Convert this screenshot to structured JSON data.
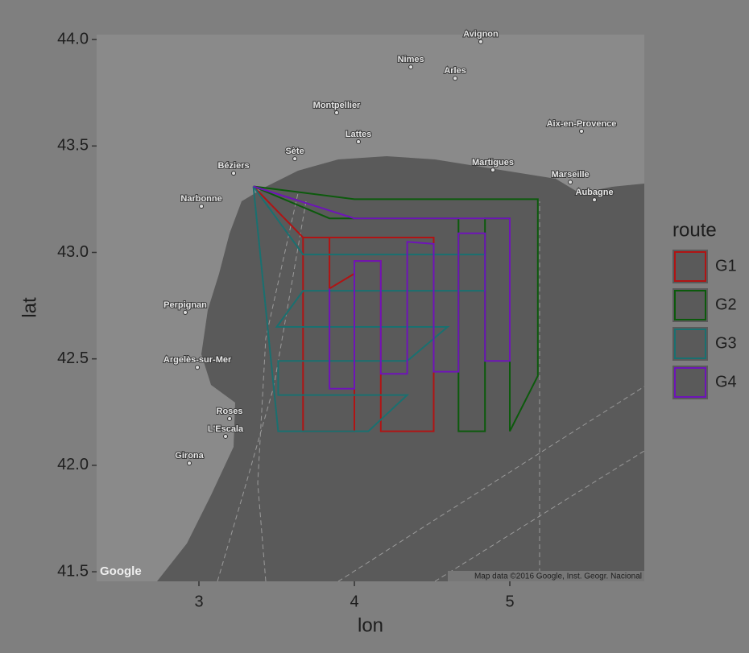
{
  "chart_data": {
    "type": "line",
    "x_label": "lon",
    "y_label": "lat",
    "xlim": [
      2.342,
      5.865
    ],
    "ylim": [
      41.455,
      44.023
    ],
    "xticks": [
      3,
      4,
      5
    ],
    "yticks": [
      {
        "value": 41.5,
        "label": "41.5"
      },
      {
        "value": 42,
        "label": "42.0"
      },
      {
        "value": 42.5,
        "label": "42.5"
      },
      {
        "value": 43,
        "label": "43.0"
      },
      {
        "value": 43.5,
        "label": "43.5"
      },
      {
        "value": 44,
        "label": "44.0"
      }
    ],
    "legend_title": "route",
    "legend_position": "right",
    "series": [
      {
        "name": "G1",
        "color": "#b01414",
        "x": [
          3.35,
          3.67,
          4.51,
          4.51,
          4.17,
          4.17,
          4.0,
          4.0,
          3.84,
          3.84,
          3.67,
          3.67,
          3.84,
          3.84,
          4.0
        ],
        "y": [
          43.31,
          43.07,
          43.07,
          42.16,
          42.16,
          42.96,
          42.96,
          42.16,
          42.16,
          42.16,
          42.16,
          43.07,
          43.07,
          42.83,
          42.9
        ]
      },
      {
        "name": "G2",
        "color": "#0c5a0c",
        "x": [
          3.35,
          4.0,
          5.18,
          5.18,
          5.0,
          5.0,
          4.84,
          4.84,
          4.67,
          4.67,
          3.84,
          3.35
        ],
        "y": [
          43.31,
          43.25,
          43.25,
          42.42,
          42.16,
          43.16,
          43.16,
          42.16,
          42.16,
          43.16,
          43.16,
          43.31
        ]
      },
      {
        "name": "G3",
        "color": "#1a7070",
        "x": [
          3.35,
          3.51,
          4.09,
          4.34,
          3.51,
          3.51,
          4.34,
          4.6,
          3.5,
          3.67,
          4.84,
          4.84,
          3.67,
          3.35
        ],
        "y": [
          43.31,
          42.16,
          42.16,
          42.33,
          42.33,
          42.49,
          42.49,
          42.65,
          42.65,
          42.82,
          42.82,
          42.99,
          42.99,
          43.31
        ]
      },
      {
        "name": "G4",
        "color": "#6e14b8",
        "x": [
          3.35,
          4.0,
          5.0,
          5.0,
          4.84,
          4.84,
          4.67,
          4.67,
          4.51,
          4.51,
          4.34,
          4.34,
          4.17,
          4.17,
          4.0,
          4.0,
          3.84,
          3.84
        ],
        "y": [
          43.31,
          43.16,
          43.16,
          42.49,
          42.49,
          43.09,
          43.09,
          42.44,
          42.44,
          43.04,
          43.05,
          42.43,
          42.43,
          42.96,
          42.96,
          42.36,
          42.36,
          42.83
        ]
      }
    ],
    "map_labels": [
      {
        "text": "Avignon",
        "lon": 4.813,
        "lat": 43.99
      },
      {
        "text": "Nimes",
        "lon": 4.363,
        "lat": 43.871
      },
      {
        "text": "Arles",
        "lon": 4.648,
        "lat": 43.818
      },
      {
        "text": "Montpellier",
        "lon": 3.886,
        "lat": 43.656
      },
      {
        "text": "Lattes",
        "lon": 4.026,
        "lat": 43.52
      },
      {
        "text": "Sète",
        "lon": 3.617,
        "lat": 43.44
      },
      {
        "text": "Béziers",
        "lon": 3.223,
        "lat": 43.372
      },
      {
        "text": "Narbonne",
        "lon": 3.016,
        "lat": 43.217
      },
      {
        "text": "Perpignan",
        "lon": 2.912,
        "lat": 42.718
      },
      {
        "text": "Argelès-sur-Mer",
        "lon": 2.99,
        "lat": 42.46
      },
      {
        "text": "Roses",
        "lon": 3.197,
        "lat": 42.219
      },
      {
        "text": "L'Escala",
        "lon": 3.171,
        "lat": 42.136
      },
      {
        "text": "Girona",
        "lon": 2.938,
        "lat": 42.01
      },
      {
        "text": "Aix-en-Provence",
        "lon": 5.461,
        "lat": 43.569
      },
      {
        "text": "Martigues",
        "lon": 4.891,
        "lat": 43.387
      },
      {
        "text": "Marseille",
        "lon": 5.389,
        "lat": 43.33
      },
      {
        "text": "Aubagne",
        "lon": 5.544,
        "lat": 43.247
      }
    ],
    "map_logo": "Google",
    "map_attribution": "Map data ©2016 Google, Inst. Geogr. Nacional"
  }
}
